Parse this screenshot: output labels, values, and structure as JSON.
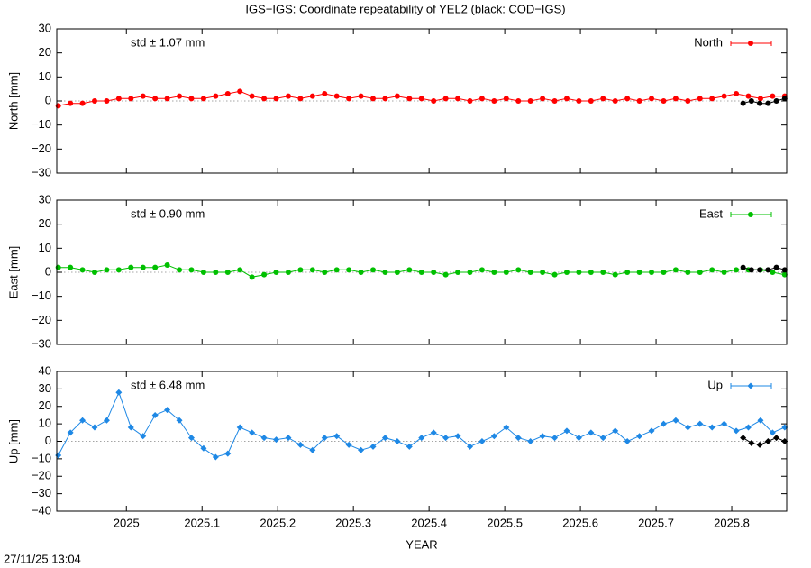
{
  "title": "IGS−IGS: Coordinate repeatability of YEL2 (black: COD−IGS)",
  "timestamp": "27/11/25 13:04",
  "chart_data": [
    {
      "type": "line",
      "ylabel": "North [mm]",
      "annotation": "std ± 1.07 mm",
      "legend": "top-right",
      "x": [
        2024.91,
        2024.926,
        2024.942,
        2024.958,
        2024.974,
        2024.99,
        2025.006,
        2025.022,
        2025.038,
        2025.054,
        2025.07,
        2025.086,
        2025.102,
        2025.118,
        2025.134,
        2025.15,
        2025.166,
        2025.182,
        2025.198,
        2025.214,
        2025.23,
        2025.246,
        2025.262,
        2025.278,
        2025.294,
        2025.31,
        2025.326,
        2025.342,
        2025.358,
        2025.374,
        2025.39,
        2025.406,
        2025.422,
        2025.438,
        2025.454,
        2025.47,
        2025.486,
        2025.502,
        2025.518,
        2025.534,
        2025.55,
        2025.566,
        2025.582,
        2025.598,
        2025.614,
        2025.63,
        2025.646,
        2025.662,
        2025.678,
        2025.694,
        2025.71,
        2025.726,
        2025.742,
        2025.758,
        2025.774,
        2025.79,
        2025.806,
        2025.822,
        2025.838,
        2025.854,
        2025.87
      ],
      "xlim": [
        2024.908,
        2025.8726
      ],
      "xticks": [
        2025,
        2025.1,
        2025.2,
        2025.3,
        2025.4,
        2025.5,
        2025.6,
        2025.7,
        2025.8
      ],
      "ylim": [
        -30,
        30
      ],
      "yticks": [
        {
          "value": -30,
          "label": "−30"
        },
        {
          "value": -20,
          "label": "−20"
        },
        {
          "value": -10,
          "label": "−10"
        },
        0,
        10,
        20,
        30
      ],
      "series": [
        {
          "name": "North",
          "color": "#ff0000",
          "marker": "circle",
          "values": [
            -2,
            -1,
            -1,
            0,
            0,
            1,
            1,
            2,
            1,
            1,
            2,
            1,
            1,
            2,
            3,
            4,
            2,
            1,
            1,
            2,
            1,
            2,
            3,
            2,
            1,
            2,
            1,
            1,
            2,
            1,
            1,
            0,
            1,
            1,
            0,
            1,
            0,
            1,
            0,
            0,
            1,
            0,
            1,
            0,
            0,
            1,
            0,
            1,
            0,
            1,
            0,
            1,
            0,
            1,
            1,
            2,
            3,
            2,
            1,
            2,
            2
          ]
        },
        {
          "color": "#000000",
          "marker": "circle",
          "x": [
            2025.815,
            2025.826,
            2025.837,
            2025.848,
            2025.859,
            2025.87
          ],
          "values": [
            -1,
            0,
            -1,
            -1,
            0,
            1
          ]
        }
      ]
    },
    {
      "type": "line",
      "ylabel": "East [mm]",
      "annotation": "std ± 0.90 mm",
      "legend": "top-right",
      "x": [
        2024.91,
        2024.926,
        2024.942,
        2024.958,
        2024.974,
        2024.99,
        2025.006,
        2025.022,
        2025.038,
        2025.054,
        2025.07,
        2025.086,
        2025.102,
        2025.118,
        2025.134,
        2025.15,
        2025.166,
        2025.182,
        2025.198,
        2025.214,
        2025.23,
        2025.246,
        2025.262,
        2025.278,
        2025.294,
        2025.31,
        2025.326,
        2025.342,
        2025.358,
        2025.374,
        2025.39,
        2025.406,
        2025.422,
        2025.438,
        2025.454,
        2025.47,
        2025.486,
        2025.502,
        2025.518,
        2025.534,
        2025.55,
        2025.566,
        2025.582,
        2025.598,
        2025.614,
        2025.63,
        2025.646,
        2025.662,
        2025.678,
        2025.694,
        2025.71,
        2025.726,
        2025.742,
        2025.758,
        2025.774,
        2025.79,
        2025.806,
        2025.822,
        2025.838,
        2025.854,
        2025.87
      ],
      "xlim": [
        2024.908,
        2025.8726
      ],
      "xticks": [
        2025,
        2025.1,
        2025.2,
        2025.3,
        2025.4,
        2025.5,
        2025.6,
        2025.7,
        2025.8
      ],
      "ylim": [
        -30,
        30
      ],
      "yticks": [
        {
          "value": -30,
          "label": "−30"
        },
        {
          "value": -20,
          "label": "−20"
        },
        {
          "value": -10,
          "label": "−10"
        },
        0,
        10,
        20,
        30
      ],
      "series": [
        {
          "name": "East",
          "color": "#00c000",
          "marker": "circle",
          "values": [
            2,
            2,
            1,
            0,
            1,
            1,
            2,
            2,
            2,
            3,
            1,
            1,
            0,
            0,
            0,
            1,
            -2,
            -1,
            0,
            0,
            1,
            1,
            0,
            1,
            1,
            0,
            1,
            0,
            0,
            1,
            0,
            0,
            -1,
            0,
            0,
            1,
            0,
            0,
            1,
            0,
            0,
            -1,
            0,
            0,
            0,
            0,
            -1,
            0,
            0,
            0,
            0,
            1,
            0,
            0,
            1,
            0,
            1,
            1,
            1,
            0,
            -1
          ]
        },
        {
          "color": "#000000",
          "marker": "circle",
          "x": [
            2025.815,
            2025.826,
            2025.837,
            2025.848,
            2025.859,
            2025.87
          ],
          "values": [
            2,
            1,
            1,
            1,
            2,
            1
          ]
        }
      ]
    },
    {
      "type": "line",
      "ylabel": "Up [mm]",
      "annotation": "std ± 6.48 mm",
      "legend": "top-right",
      "xlabel": "YEAR",
      "x": [
        2024.91,
        2024.926,
        2024.942,
        2024.958,
        2024.974,
        2024.99,
        2025.006,
        2025.022,
        2025.038,
        2025.054,
        2025.07,
        2025.086,
        2025.102,
        2025.118,
        2025.134,
        2025.15,
        2025.166,
        2025.182,
        2025.198,
        2025.214,
        2025.23,
        2025.246,
        2025.262,
        2025.278,
        2025.294,
        2025.31,
        2025.326,
        2025.342,
        2025.358,
        2025.374,
        2025.39,
        2025.406,
        2025.422,
        2025.438,
        2025.454,
        2025.47,
        2025.486,
        2025.502,
        2025.518,
        2025.534,
        2025.55,
        2025.566,
        2025.582,
        2025.598,
        2025.614,
        2025.63,
        2025.646,
        2025.662,
        2025.678,
        2025.694,
        2025.71,
        2025.726,
        2025.742,
        2025.758,
        2025.774,
        2025.79,
        2025.806,
        2025.822,
        2025.838,
        2025.854,
        2025.87
      ],
      "xlim": [
        2024.908,
        2025.8726
      ],
      "xticks": [
        2025,
        2025.1,
        2025.2,
        2025.3,
        2025.4,
        2025.5,
        2025.6,
        2025.7,
        2025.8
      ],
      "ylim": [
        -40,
        40
      ],
      "yticks": [
        {
          "value": -40,
          "label": "−40"
        },
        {
          "value": -30,
          "label": "−30"
        },
        {
          "value": -20,
          "label": "−20"
        },
        {
          "value": -10,
          "label": "−10"
        },
        0,
        10,
        20,
        30,
        40
      ],
      "series": [
        {
          "name": "Up",
          "color": "#1e88e5",
          "marker": "diamond",
          "values": [
            -8,
            5,
            12,
            8,
            12,
            28,
            8,
            3,
            15,
            18,
            12,
            2,
            -4,
            -9,
            -7,
            8,
            5,
            2,
            1,
            2,
            -2,
            -5,
            2,
            3,
            -2,
            -5,
            -3,
            2,
            0,
            -3,
            2,
            5,
            2,
            3,
            -3,
            0,
            3,
            8,
            2,
            0,
            3,
            2,
            6,
            2,
            5,
            2,
            6,
            0,
            3,
            6,
            10,
            12,
            8,
            10,
            8,
            10,
            6,
            8,
            12,
            5,
            8
          ]
        },
        {
          "color": "#000000",
          "marker": "diamond",
          "x": [
            2025.815,
            2025.826,
            2025.837,
            2025.848,
            2025.859,
            2025.87
          ],
          "values": [
            2,
            -1,
            -2,
            0,
            2,
            0
          ]
        }
      ]
    }
  ]
}
